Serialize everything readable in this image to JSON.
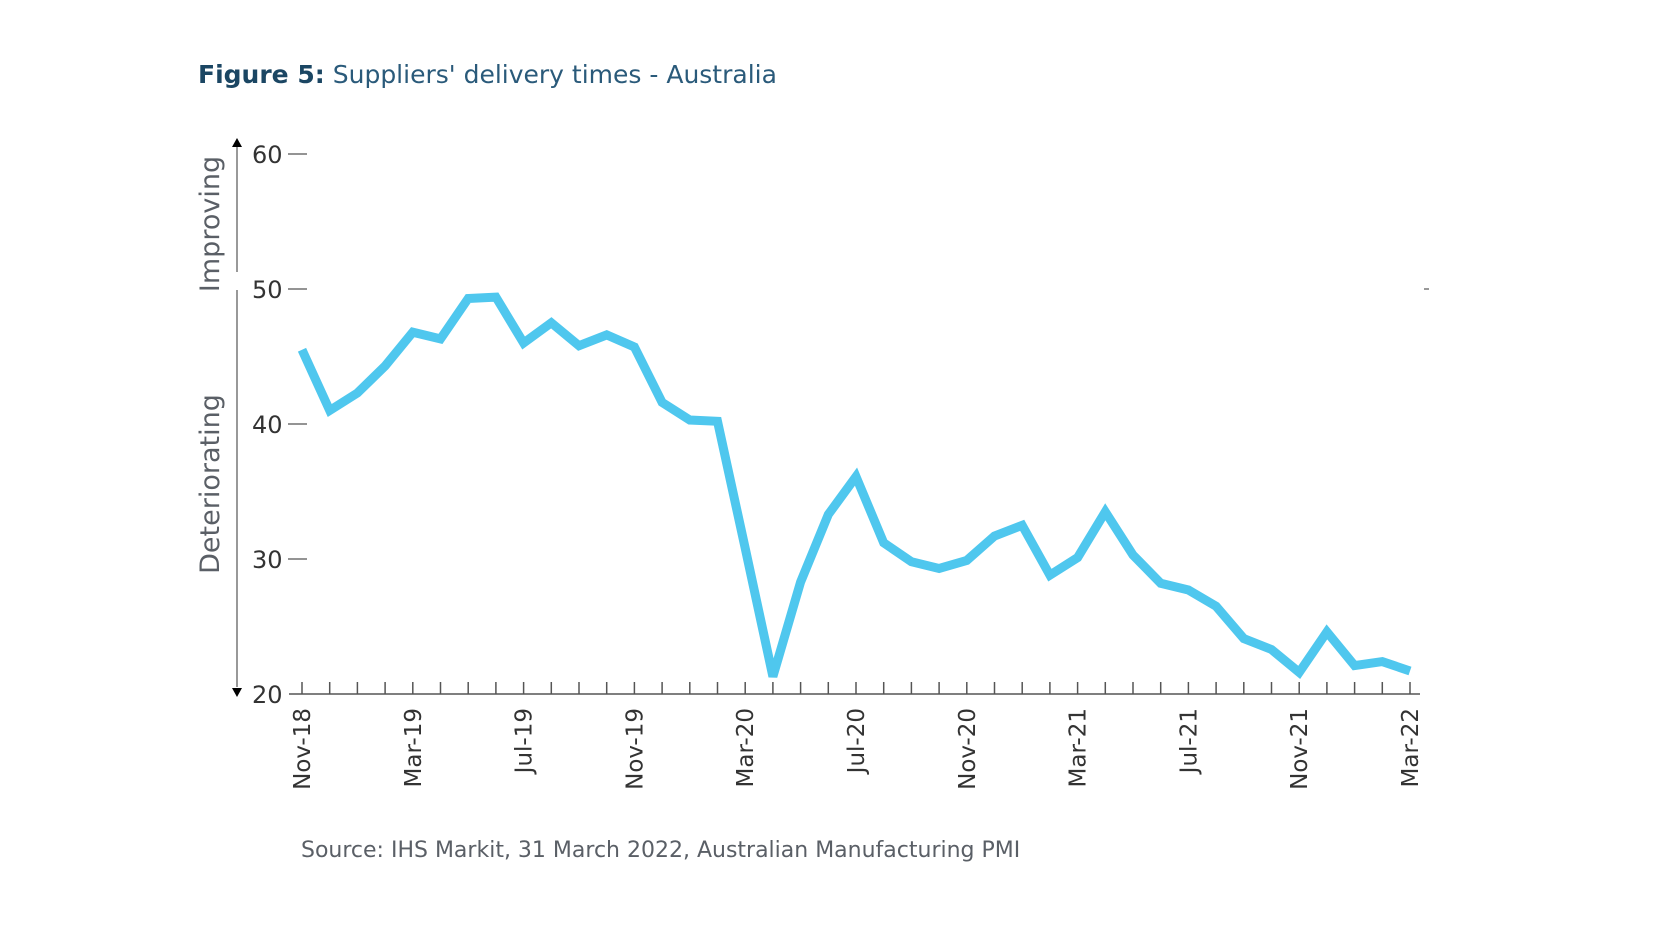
{
  "title": {
    "figure_label": "Figure 5:",
    "text": "Suppliers' delivery times - Australia"
  },
  "source": "Source: IHS Markit, 31 March 2022, Australian Manufacturing PMI",
  "colors": {
    "line": "#4fc7ee",
    "axis": "#555555",
    "title": "#1b4663"
  },
  "chart_data": {
    "type": "line",
    "title": "Suppliers' delivery times - Australia",
    "xlabel": "",
    "ylabel": "",
    "ylim": [
      20,
      60
    ],
    "yticks": [
      20,
      30,
      40,
      50,
      60
    ],
    "side_labels": {
      "upper": "Improving",
      "lower": "Deteriorating"
    },
    "x_tick_labels": [
      "Nov-18",
      "Mar-19",
      "Jul-19",
      "Nov-19",
      "Mar-20",
      "Jul-20",
      "Nov-20",
      "Mar-21",
      "Jul-21",
      "Nov-21",
      "Mar-22"
    ],
    "x": [
      "Nov-18",
      "Dec-18",
      "Jan-19",
      "Feb-19",
      "Mar-19",
      "Apr-19",
      "May-19",
      "Jun-19",
      "Jul-19",
      "Aug-19",
      "Sep-19",
      "Oct-19",
      "Nov-19",
      "Dec-19",
      "Jan-20",
      "Feb-20",
      "Mar-20",
      "Apr-20",
      "May-20",
      "Jun-20",
      "Jul-20",
      "Aug-20",
      "Sep-20",
      "Oct-20",
      "Nov-20",
      "Dec-20",
      "Jan-21",
      "Feb-21",
      "Mar-21",
      "Apr-21",
      "May-21",
      "Jun-21",
      "Jul-21",
      "Aug-21",
      "Sep-21",
      "Oct-21",
      "Nov-21",
      "Dec-21",
      "Jan-22",
      "Feb-22",
      "Mar-22"
    ],
    "series": [
      {
        "values": [
          45.5,
          41.0,
          42.3,
          44.3,
          46.8,
          46.3,
          49.3,
          49.4,
          46.0,
          47.5,
          45.8,
          46.6,
          45.7,
          41.6,
          40.3,
          40.2,
          30.8,
          21.3,
          28.3,
          33.3,
          36.1,
          31.2,
          29.8,
          29.3,
          29.9,
          31.7,
          32.5,
          28.8,
          30.1,
          33.5,
          30.3,
          28.2,
          27.7,
          26.5,
          24.1,
          23.3,
          21.6,
          24.6,
          22.1,
          22.4,
          21.7
        ]
      }
    ]
  }
}
